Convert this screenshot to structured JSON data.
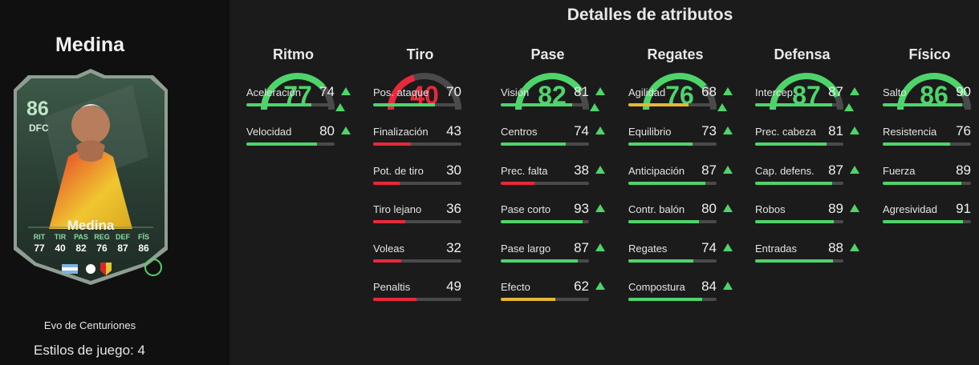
{
  "player": {
    "name": "Medina",
    "rating": "86",
    "position": "DFC",
    "evo": "Evo de Centuriones",
    "styles": "Estilos de juego: 4",
    "card_stats": [
      {
        "k": "RIT",
        "v": "77"
      },
      {
        "k": "TIR",
        "v": "40"
      },
      {
        "k": "PAS",
        "v": "82"
      },
      {
        "k": "REG",
        "v": "76"
      },
      {
        "k": "DEF",
        "v": "87"
      },
      {
        "k": "FÍS",
        "v": "86"
      }
    ]
  },
  "title": "Detalles de atributos",
  "colors": {
    "green": "#4fd46b",
    "yellow": "#e6b63a",
    "red": "#e8293b",
    "track": "#4a4a4a"
  },
  "categories": [
    {
      "name": "Ritmo",
      "value": 77,
      "up": true,
      "stats": [
        {
          "label": "Aceleración",
          "value": 74,
          "up": true
        },
        {
          "label": "Velocidad",
          "value": 80,
          "up": true
        }
      ]
    },
    {
      "name": "Tiro",
      "value": 40,
      "up": false,
      "stats": [
        {
          "label": "Pos. ataque",
          "value": 70,
          "up": false
        },
        {
          "label": "Finalización",
          "value": 43,
          "up": false
        },
        {
          "label": "Pot. de tiro",
          "value": 30,
          "up": false
        },
        {
          "label": "Tiro lejano",
          "value": 36,
          "up": false
        },
        {
          "label": "Voleas",
          "value": 32,
          "up": false
        },
        {
          "label": "Penaltis",
          "value": 49,
          "up": false
        }
      ]
    },
    {
      "name": "Pase",
      "value": 82,
      "up": true,
      "stats": [
        {
          "label": "Visión",
          "value": 81,
          "up": true
        },
        {
          "label": "Centros",
          "value": 74,
          "up": true
        },
        {
          "label": "Prec. falta",
          "value": 38,
          "up": true
        },
        {
          "label": "Pase corto",
          "value": 93,
          "up": true
        },
        {
          "label": "Pase largo",
          "value": 87,
          "up": true
        },
        {
          "label": "Efecto",
          "value": 62,
          "up": true
        }
      ]
    },
    {
      "name": "Regates",
      "value": 76,
      "up": true,
      "stats": [
        {
          "label": "Agilidad",
          "value": 68,
          "up": true
        },
        {
          "label": "Equilibrio",
          "value": 73,
          "up": true
        },
        {
          "label": "Anticipación",
          "value": 87,
          "up": true
        },
        {
          "label": "Contr. balón",
          "value": 80,
          "up": true
        },
        {
          "label": "Regates",
          "value": 74,
          "up": true
        },
        {
          "label": "Compostura",
          "value": 84,
          "up": true
        }
      ]
    },
    {
      "name": "Defensa",
      "value": 87,
      "up": true,
      "stats": [
        {
          "label": "Intercep.",
          "value": 87,
          "up": true
        },
        {
          "label": "Prec. cabeza",
          "value": 81,
          "up": true
        },
        {
          "label": "Cap. defens.",
          "value": 87,
          "up": true
        },
        {
          "label": "Robos",
          "value": 89,
          "up": true
        },
        {
          "label": "Entradas",
          "value": 88,
          "up": true
        }
      ]
    },
    {
      "name": "Físico",
      "value": 86,
      "up": false,
      "stats": [
        {
          "label": "Salto",
          "value": 90,
          "up": false
        },
        {
          "label": "Resistencia",
          "value": 76,
          "up": false
        },
        {
          "label": "Fuerza",
          "value": 89,
          "up": false
        },
        {
          "label": "Agresividad",
          "value": 91,
          "up": false
        }
      ]
    }
  ]
}
